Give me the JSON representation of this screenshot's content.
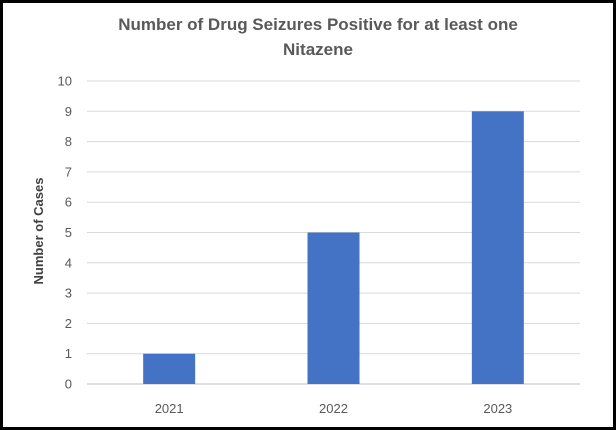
{
  "chart_data": {
    "type": "bar",
    "title_lines": [
      "Number of Drug Seizures Positive for at least one",
      "Nitazene"
    ],
    "xlabel": "",
    "ylabel": "Number of Cases",
    "categories": [
      "2021",
      "2022",
      "2023"
    ],
    "values": [
      1,
      5,
      9
    ],
    "ylim": [
      0,
      10
    ],
    "yticks": [
      "0",
      "1",
      "2",
      "3",
      "4",
      "5",
      "6",
      "7",
      "8",
      "9",
      "10"
    ],
    "grid": true,
    "legend": "none",
    "bar_color": "#4472C4",
    "grid_color": "#D9D9D9"
  }
}
